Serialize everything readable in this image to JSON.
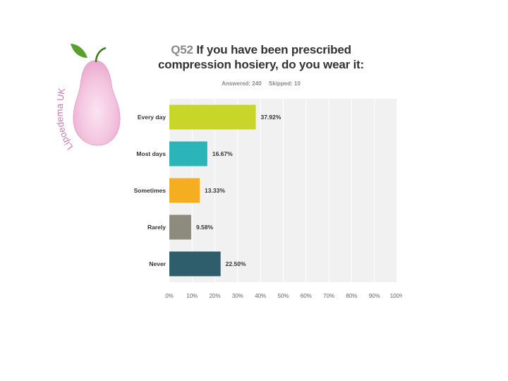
{
  "logo": {
    "text": "Lipoedema UK",
    "leaf_color": "#5aa02c",
    "pear_color": "#f4c6e0"
  },
  "question": {
    "number": "Q52",
    "text": "If you have been prescribed compression hosiery, do you wear it:",
    "answered_label": "Answered: 240",
    "skipped_label": "Skipped: 10"
  },
  "chart_data": {
    "type": "bar",
    "orientation": "horizontal",
    "categories": [
      "Every day",
      "Most days",
      "Sometimes",
      "Rarely",
      "Never"
    ],
    "values": [
      37.92,
      16.67,
      13.33,
      9.58,
      22.5
    ],
    "value_labels": [
      "37.92%",
      "16.67%",
      "13.33%",
      "9.58%",
      "22.50%"
    ],
    "colors": [
      "#c8d62a",
      "#2bb5b8",
      "#f5ae1f",
      "#8c8b7e",
      "#2e5e6b"
    ],
    "xlim": [
      0,
      100
    ],
    "x_ticks": [
      "0%",
      "10%",
      "20%",
      "30%",
      "40%",
      "50%",
      "60%",
      "70%",
      "80%",
      "90%",
      "100%"
    ],
    "grid": true,
    "plot_background": "#f1f1f1"
  }
}
